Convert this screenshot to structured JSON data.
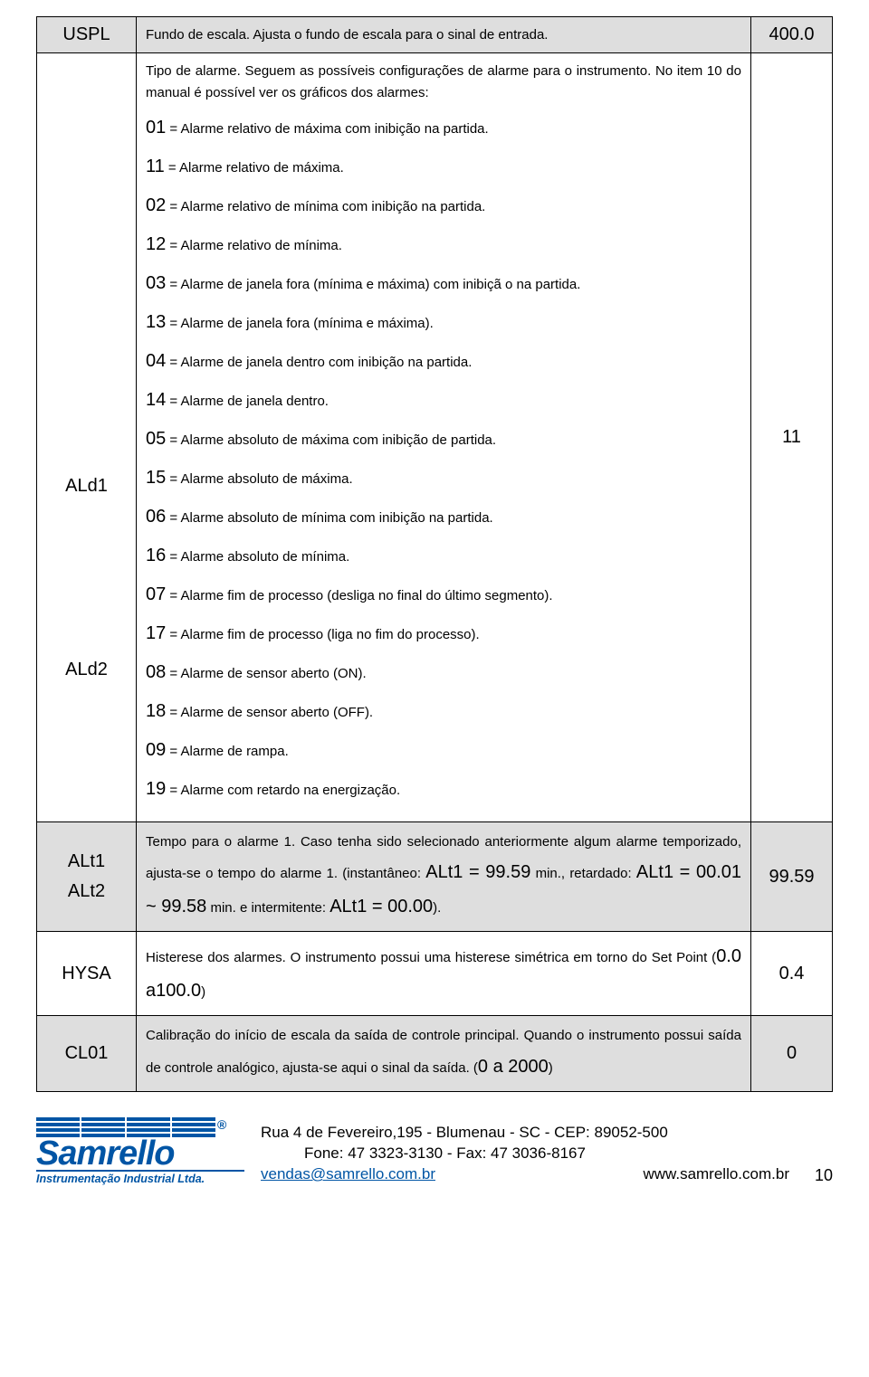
{
  "rows": {
    "uspl": {
      "param": "USPL",
      "desc": "Fundo de escala. Ajusta o fundo de escala para o sinal de entrada.",
      "value": "400.0"
    },
    "ald": {
      "param1": "ALd1",
      "param2": "ALd2",
      "intro": "Tipo de alarme. Seguem as possíveis configurações de alarme para o instrumento. No item 10 do manual é possível ver os gráficos dos alarmes:",
      "items": [
        {
          "code": "01",
          "text": "Alarme relativo de máxima com inibição na partida."
        },
        {
          "code": "11",
          "text": "Alarme relativo de máxima."
        },
        {
          "code": "02",
          "text": "Alarme relativo de mínima com inibição na partida."
        },
        {
          "code": "12",
          "text": "Alarme relativo de mínima."
        },
        {
          "code": "03",
          "text": "Alarme de janela fora (mínima e máxima) com inibiçã o na partida."
        },
        {
          "code": "13",
          "text": "Alarme de janela fora (mínima e máxima)."
        },
        {
          "code": "04",
          "text": "Alarme de janela dentro com inibição na partida."
        },
        {
          "code": "14",
          "text": "Alarme de janela dentro."
        },
        {
          "code": "05",
          "text": "Alarme absoluto de máxima com inibição de partida."
        },
        {
          "code": "15",
          "text": "Alarme absoluto de máxima."
        },
        {
          "code": "06",
          "text": "Alarme absoluto de mínima com inibição na partida."
        },
        {
          "code": "16",
          "text": "Alarme absoluto de mínima."
        },
        {
          "code": "07",
          "text": "Alarme fim de processo (desliga no final do último segmento)."
        },
        {
          "code": "17",
          "text": "Alarme fim de processo (liga no fim do processo)."
        },
        {
          "code": "08",
          "text": "Alarme de sensor aberto (ON)."
        },
        {
          "code": "18",
          "text": "Alarme de sensor aberto (OFF)."
        },
        {
          "code": "09",
          "text": "Alarme de rampa."
        },
        {
          "code": "19",
          "text": "Alarme com retardo na energização."
        }
      ],
      "value": "11"
    },
    "alt": {
      "param1": "ALt1",
      "param2": "ALt2",
      "desc_pre": "Tempo para o alarme 1. Caso tenha sido selecionado anteriormente algum alarme temporizado, ajusta-se o tempo do alarme 1. (instantâneo: ",
      "expr1": "ALt1 = 99.59",
      "desc_mid1": " min., retardado: ",
      "expr2": "ALt1 = 00.01 ~ 99.58",
      "desc_mid2": " min. e intermitente: ",
      "expr3": "ALt1 = 00.00",
      "desc_end": ").",
      "value": "99.59"
    },
    "hysa": {
      "param": "HYSA",
      "desc_pre": "Histerese dos alarmes. O instrumento possui uma histerese simétrica em torno do Set Point (",
      "range": "0.0 a100.0",
      "desc_end": ")",
      "value": "0.4"
    },
    "cl01": {
      "param": "CL01",
      "desc_pre": "Calibração do início de escala da saída de controle principal. Quando o instrumento possui saída de controle analógico, ajusta-se aqui o sinal da saída. (",
      "range": "0 a 2000",
      "desc_end": ")",
      "value": "0"
    }
  },
  "footer": {
    "logo_name": "Samrello",
    "logo_sub": "Instrumentação Industrial Ltda.",
    "addr1": "Rua 4 de Fevereiro,195 - Blumenau - SC - CEP: 89052-500",
    "addr2": "Fone: 47 3323-3130 - Fax: 47 3036-8167",
    "email": "vendas@samrello.com.br",
    "site": "www.samrello.com.br",
    "page": "10"
  },
  "colors": {
    "border": "#000000",
    "gray_row": "#dedede",
    "brand_blue": "#0055a5",
    "link_blue": "#0055a5",
    "text": "#000000",
    "bg": "#ffffff"
  }
}
